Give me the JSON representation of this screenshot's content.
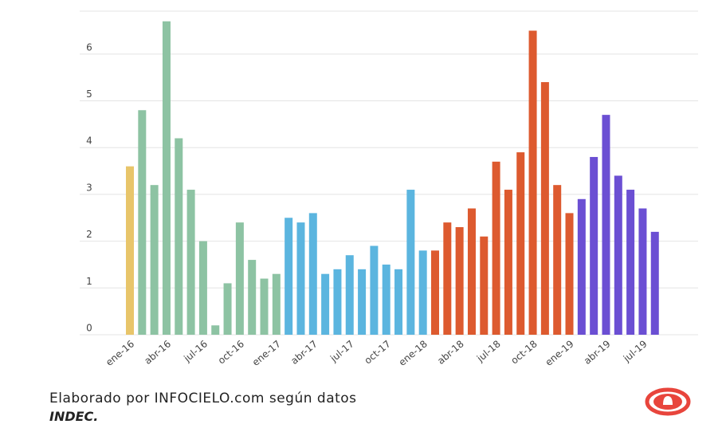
{
  "chart_data": {
    "type": "bar",
    "categories": [
      "ene-16",
      null,
      null,
      "abr-16",
      null,
      null,
      "jul-16",
      null,
      null,
      "oct-16",
      null,
      null,
      "ene-17",
      null,
      null,
      "abr-17",
      null,
      null,
      "jul-17",
      null,
      null,
      "oct-17",
      null,
      null,
      "ene-18",
      null,
      null,
      "abr-18",
      null,
      null,
      "jul-18",
      null,
      null,
      "oct-18",
      null,
      null,
      "ene-19",
      null,
      null,
      "abr-19",
      null,
      null,
      "jul-19",
      null
    ],
    "values": [
      3.6,
      4.8,
      3.2,
      6.7,
      4.2,
      3.1,
      2.0,
      0.2,
      1.1,
      2.4,
      1.6,
      1.2,
      1.3,
      2.5,
      2.4,
      2.6,
      1.3,
      1.4,
      1.7,
      1.4,
      1.9,
      1.5,
      1.4,
      3.1,
      1.8,
      1.8,
      2.4,
      2.3,
      2.7,
      2.1,
      3.7,
      3.1,
      3.9,
      6.5,
      5.4,
      3.2,
      2.6,
      2.9,
      3.8,
      4.7,
      3.4,
      3.1,
      2.7,
      2.2
    ],
    "colors": [
      "#e8c56a",
      "#8dc3a3",
      "#8dc3a3",
      "#8dc3a3",
      "#8dc3a3",
      "#8dc3a3",
      "#8dc3a3",
      "#8dc3a3",
      "#8dc3a3",
      "#8dc3a3",
      "#8dc3a3",
      "#8dc3a3",
      "#8dc3a3",
      "#5bb5df",
      "#5bb5df",
      "#5bb5df",
      "#5bb5df",
      "#5bb5df",
      "#5bb5df",
      "#5bb5df",
      "#5bb5df",
      "#5bb5df",
      "#5bb5df",
      "#5bb5df",
      "#5bb5df",
      "#dd5a2f",
      "#dd5a2f",
      "#dd5a2f",
      "#dd5a2f",
      "#dd5a2f",
      "#dd5a2f",
      "#dd5a2f",
      "#dd5a2f",
      "#dd5a2f",
      "#dd5a2f",
      "#dd5a2f",
      "#dd5a2f",
      "#6b4fd3",
      "#6b4fd3",
      "#6b4fd3",
      "#6b4fd3",
      "#6b4fd3",
      "#6b4fd3",
      "#6b4fd3"
    ],
    "ylim": [
      0,
      6.9
    ],
    "yticks": [
      0,
      1,
      2,
      3,
      4,
      5,
      6
    ],
    "grid": true
  },
  "footer": {
    "text": "Elaborado por INFOCIELO.com según datos",
    "source": "INDEC."
  }
}
